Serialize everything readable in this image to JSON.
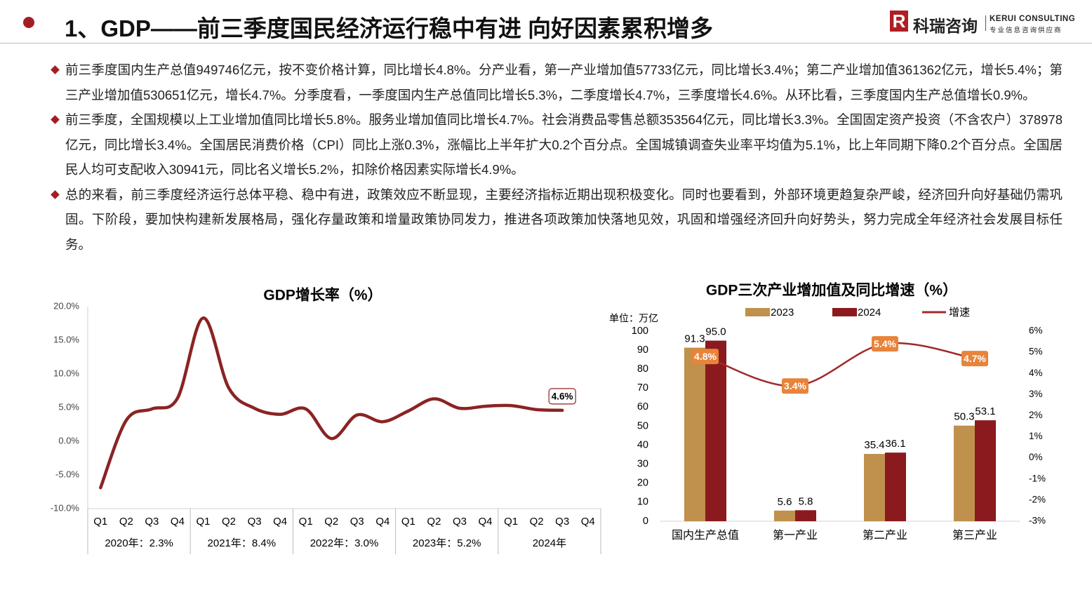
{
  "header": {
    "title": "1、GDP——前三季度国民经济运行稳中有进 向好因素累积增多",
    "logo_mark": "R",
    "logo_name": "科瑞咨询",
    "logo_en": "KERUI CONSULTING",
    "logo_sub": "专业信息咨询供应商"
  },
  "bullets": [
    "前三季度国内生产总值949746亿元，按不变价格计算，同比增长4.8%。分产业看，第一产业增加值57733亿元，同比增长3.4%；第二产业增加值361362亿元，增长5.4%；第三产业增加值530651亿元，增长4.7%。分季度看，一季度国内生产总值同比增长5.3%，二季度增长4.7%，三季度增长4.6%。从环比看，三季度国内生产总值增长0.9%。",
    "前三季度，全国规模以上工业增加值同比增长5.8%。服务业增加值同比增长4.7%。社会消费品零售总额353564亿元，同比增长3.3%。全国固定资产投资（不含农户）378978亿元，同比增长3.4%。全国居民消费价格（CPI）同比上涨0.3%，涨幅比上半年扩大0.2个百分点。全国城镇调查失业率平均值为5.1%，比上年同期下降0.2个百分点。全国居民人均可支配收入30941元，同比名义增长5.2%，扣除价格因素实际增长4.9%。",
    "总的来看，前三季度经济运行总体平稳、稳中有进，政策效应不断显现，主要经济指标近期出现积极变化。同时也要看到，外部环境更趋复杂严峻，经济回升向好基础仍需巩固。下阶段，要加快构建新发展格局，强化存量政策和增量政策协同发力，推进各项政策加快落地见效，巩固和增强经济回升向好势头，努力完成全年经济社会发展目标任务。"
  ],
  "chart_data": [
    {
      "type": "line",
      "title": "GDP增长率（%）",
      "categories": [
        "Q1",
        "Q2",
        "Q3",
        "Q4",
        "Q1",
        "Q2",
        "Q3",
        "Q4",
        "Q1",
        "Q2",
        "Q3",
        "Q4",
        "Q1",
        "Q2",
        "Q3",
        "Q4",
        "Q1",
        "Q2",
        "Q3",
        "Q4"
      ],
      "x_groups": [
        "2020年：2.3%",
        "2021年：8.4%",
        "2022年：3.0%",
        "2023年：5.2%",
        "2024年"
      ],
      "values": [
        -6.9,
        3.1,
        4.8,
        6.4,
        18.3,
        7.9,
        4.9,
        4.0,
        4.8,
        0.4,
        3.9,
        2.9,
        4.5,
        6.3,
        4.9,
        5.2,
        5.3,
        4.7,
        4.6,
        null
      ],
      "value_labels": [
        null,
        null,
        null,
        null,
        null,
        null,
        null,
        null,
        null,
        null,
        null,
        null,
        null,
        null,
        null,
        null,
        null,
        null,
        "4.6%",
        null
      ],
      "color": "#8b2323",
      "ylim": [
        -10,
        20
      ],
      "yticks": [
        {
          "value": -10,
          "label": "-10.0%"
        },
        {
          "value": -5,
          "label": "-5.0%"
        },
        {
          "value": 0,
          "label": "0.0%"
        },
        {
          "value": 5,
          "label": "5.0%"
        },
        {
          "value": 10,
          "label": "10.0%"
        },
        {
          "value": 15,
          "label": "15.0%"
        },
        {
          "value": 20,
          "label": "20.0%"
        }
      ],
      "grid": false
    },
    {
      "type": "bar",
      "title": "GDP三次产业增加值及同比增速（%）",
      "unit_label": "单位：万亿",
      "categories": [
        "国内生产总值",
        "第一产业",
        "第二产业",
        "第三产业"
      ],
      "series": [
        {
          "name": "2023",
          "color": "#c0904d",
          "values": [
            91.3,
            5.6,
            35.4,
            50.3
          ]
        },
        {
          "name": "2024",
          "color": "#8b1a1f",
          "values": [
            95.0,
            5.8,
            36.1,
            53.1
          ],
          "value_labels": [
            "95.0",
            "5.8",
            "36.1",
            "53.1"
          ]
        },
        {
          "name": "增速",
          "type": "line",
          "axis": "y2",
          "color": "#a02a2a",
          "label_color": "#e8833a",
          "values": [
            4.8,
            3.4,
            5.4,
            4.7
          ],
          "value_labels": [
            "4.8%",
            "3.4%",
            "5.4%",
            "4.7%"
          ]
        }
      ],
      "ylim": [
        0,
        100
      ],
      "yticks": [
        0,
        10,
        20,
        30,
        40,
        50,
        60,
        70,
        80,
        90,
        100
      ],
      "y2lim": [
        -3,
        6
      ],
      "y2ticks": [
        {
          "value": -3,
          "label": "-3%"
        },
        {
          "value": -2,
          "label": "-2%"
        },
        {
          "value": -1,
          "label": "-1%"
        },
        {
          "value": 0,
          "label": "0%"
        },
        {
          "value": 1,
          "label": "1%"
        },
        {
          "value": 2,
          "label": "2%"
        },
        {
          "value": 3,
          "label": "3%"
        },
        {
          "value": 4,
          "label": "4%"
        },
        {
          "value": 5,
          "label": "5%"
        },
        {
          "value": 6,
          "label": "6%"
        }
      ],
      "legend": "top"
    }
  ]
}
